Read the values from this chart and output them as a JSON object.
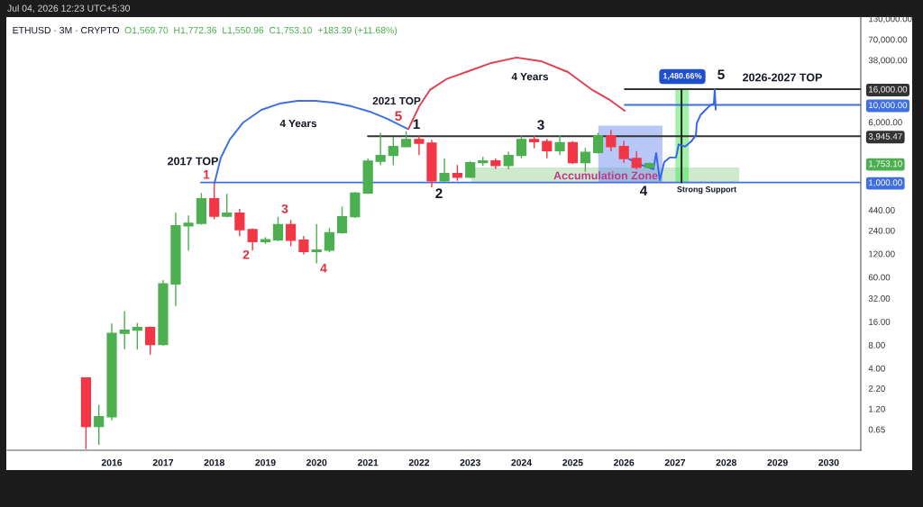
{
  "chart_data": {
    "type": "candlestick",
    "title": "ETHUSD · 3M · CRYPTO",
    "subtitle": "O1,569.70  H1,772.36  L1,550.96  C1,753.10  +183.39 (+11.68%)",
    "x": [
      "2015-07-01",
      "2015-10-01",
      "2016-01-01",
      "2016-04-01",
      "2016-07-01",
      "2016-10-01",
      "2017-01-01",
      "2017-04-01",
      "2017-07-01",
      "2017-10-01",
      "2018-01-01",
      "2018-04-01",
      "2018-07-01",
      "2018-10-01",
      "2019-01-01",
      "2019-04-01",
      "2019-07-01",
      "2019-10-01",
      "2020-01-01",
      "2020-04-01",
      "2020-07-01",
      "2020-10-01",
      "2021-01-01",
      "2021-04-01",
      "2021-07-01",
      "2021-10-01",
      "2022-01-01",
      "2022-04-01",
      "2022-07-01",
      "2022-10-01",
      "2023-01-01",
      "2023-04-01",
      "2023-07-01",
      "2023-10-01",
      "2024-01-01",
      "2024-04-01",
      "2024-07-01",
      "2024-10-01",
      "2025-01-01",
      "2025-04-01",
      "2025-07-01",
      "2025-10-01",
      "2026-01-01",
      "2026-04-01",
      "2026-07-01"
    ],
    "ohlc": [
      [
        3.0,
        3.0,
        0.37,
        0.71
      ],
      [
        0.71,
        1.33,
        0.42,
        0.95
      ],
      [
        0.95,
        14.8,
        0.87,
        11.3
      ],
      [
        11.3,
        21.5,
        7.2,
        12.4
      ],
      [
        12.4,
        15.1,
        7.1,
        13.4
      ],
      [
        13.4,
        13.6,
        6.1,
        8.1
      ],
      [
        8.1,
        54,
        8.0,
        49
      ],
      [
        49,
        400,
        26,
        276
      ],
      [
        276,
        367,
        135,
        297
      ],
      [
        297,
        718,
        290,
        616
      ],
      [
        616,
        980,
        342,
        367
      ],
      [
        367,
        700,
        361,
        402
      ],
      [
        402,
        447,
        206,
        246
      ],
      [
        246,
        250,
        135,
        172
      ],
      [
        172,
        193,
        164,
        182
      ],
      [
        182,
        351,
        178,
        286
      ],
      [
        286,
        321,
        153,
        180
      ],
      [
        180,
        200,
        120,
        128
      ],
      [
        128,
        286,
        92,
        134
      ],
      [
        134,
        253,
        128,
        225
      ],
      [
        225,
        480,
        222,
        361
      ],
      [
        361,
        740,
        355,
        730
      ],
      [
        730,
        2000,
        720,
        1880
      ],
      [
        1880,
        4280,
        1700,
        2230
      ],
      [
        2230,
        3800,
        1700,
        2910
      ],
      [
        2910,
        4500,
        2900,
        3580
      ],
      [
        3580,
        3900,
        2290,
        3210
      ],
      [
        3210,
        3480,
        880,
        1050
      ],
      [
        1050,
        2000,
        1020,
        1300
      ],
      [
        1300,
        1650,
        1070,
        1170
      ],
      [
        1170,
        1850,
        1170,
        1800
      ],
      [
        1800,
        2090,
        1680,
        1900
      ],
      [
        1900,
        2000,
        1530,
        1650
      ],
      [
        1650,
        2440,
        1510,
        2230
      ],
      [
        2230,
        3900,
        2090,
        3580
      ],
      [
        3580,
        4000,
        2810,
        3360
      ],
      [
        3360,
        3580,
        2090,
        2570
      ],
      [
        2570,
        4000,
        2290,
        3270
      ],
      [
        3270,
        3360,
        1760,
        1800
      ],
      [
        1800,
        2740,
        1400,
        2440
      ],
      [
        2440,
        4280,
        2400,
        4020
      ],
      [
        4020,
        4670,
        2570,
        2910
      ],
      [
        2910,
        3360,
        1830,
        2040
      ],
      [
        2040,
        2500,
        1510,
        1570
      ],
      [
        1569.7,
        1772.36,
        1550.96,
        1753.1
      ]
    ],
    "colors": [
      "#f23645",
      "#4caf50",
      "#4caf50",
      "#4caf50",
      "#4caf50",
      "#f23645",
      "#4caf50",
      "#4caf50",
      "#4caf50",
      "#4caf50",
      "#f23645",
      "#4caf50",
      "#f23645",
      "#f23645",
      "#4caf50",
      "#4caf50",
      "#f23645",
      "#f23645",
      "#4caf50",
      "#4caf50",
      "#4caf50",
      "#4caf50",
      "#4caf50",
      "#4caf50",
      "#4caf50",
      "#4caf50",
      "#f23645",
      "#f23645",
      "#4caf50",
      "#f23645",
      "#4caf50",
      "#4caf50",
      "#f23645",
      "#4caf50",
      "#4caf50",
      "#f23645",
      "#f23645",
      "#4caf50",
      "#f23645",
      "#4caf50",
      "#4caf50",
      "#f23645",
      "#f23645",
      "#f23645",
      "#4caf50"
    ],
    "series": [
      {
        "type": "line",
        "color": "#9fd49a",
        "x": [
          "2023-01-10",
          "2028-04-03"
        ],
        "values": [
          null,
          null
        ],
        "lower": [
          1000,
          1000
        ],
        "upper": [
          1560,
          1560
        ]
      },
      {
        "type": "line",
        "color": "#6f8ff0",
        "x": [
          "2025-07-03",
          "2026-10-03"
        ],
        "values": [
          null,
          null
        ],
        "lower": [
          1000,
          1000
        ],
        "upper": [
          5400,
          5400
        ]
      },
      {
        "type": "line",
        "color": "#3ee84f",
        "x": [
          "2027-01-04",
          "2027-04-08"
        ],
        "values": [
          null,
          null
        ],
        "lower": [
          1000,
          1000
        ],
        "upper": [
          16000,
          16000
        ]
      },
      {
        "type": "line",
        "color": "#3f6fe0",
        "x": [
          "2018-01-03",
          "2018-02-17",
          "2018-04-22",
          "2018-07-27",
          "2018-12-03",
          "2019-04-11",
          "2019-08-18",
          "2019-12-24",
          "2020-05-01",
          "2020-09-07",
          "2021-01-14",
          "2021-05-22",
          "2021-10-11"
        ],
        "values": [
          990,
          2090,
          3580,
          5950,
          8650,
          10400,
          11300,
          11300,
          10700,
          9600,
          8200,
          6600,
          4900
        ]
      },
      {
        "type": "line",
        "color": "#e2404f",
        "x": [
          "2021-10-17",
          "2022-01-02",
          "2022-03-19",
          "2022-07-14",
          "2022-12-02",
          "2023-05-31",
          "2023-11-27",
          "2024-05-19",
          "2024-11-28",
          "2025-05-21",
          "2025-09-13",
          "2026-01-07"
        ],
        "values": [
          4900,
          9600,
          15600,
          21500,
          26600,
          34800,
          40900,
          36700,
          26600,
          15600,
          11900,
          8400
        ]
      },
      {
        "type": "line",
        "color": "#3f6fe0",
        "x": [
          "2017-09-28",
          "2030-08-18"
        ],
        "values": [
          1000,
          1000
        ]
      },
      {
        "type": "line",
        "color": "#333333",
        "x": [
          "2021-01-01",
          "2030-08-18"
        ],
        "values": [
          3945.47,
          3945.47
        ]
      },
      {
        "type": "line",
        "color": "#3f6fe0",
        "x": [
          "2026-01-07",
          "2030-08-18"
        ],
        "values": [
          10000,
          10000
        ]
      },
      {
        "type": "line",
        "color": "#333333",
        "x": [
          "2026-01-07",
          "2030-08-18"
        ],
        "values": [
          16000,
          16000
        ]
      },
      {
        "type": "line",
        "color": "#222222",
        "x": [
          "2027-02-16",
          "2027-02-16"
        ],
        "values": [
          1000,
          16000
        ]
      },
      {
        "type": "line",
        "color": "#3366ee",
        "x": [
          "2026-02-08",
          "2026-04-07",
          "2026-06-10",
          "2026-07-31",
          "2026-08-19",
          "2026-09-14",
          "2026-10-16",
          "2026-11-24",
          "2027-01-08",
          "2027-01-27",
          "2027-03-13",
          "2027-04-28",
          "2027-05-30",
          "2027-06-05",
          "2027-07-01",
          "2027-08-08",
          "2027-09-09",
          "2027-10-05",
          "2027-10-11",
          "2027-10-18"
        ],
        "values": [
          2000,
          1750,
          1600,
          1480,
          2400,
          1070,
          1830,
          2100,
          2100,
          3100,
          2900,
          3400,
          4100,
          5800,
          7400,
          8700,
          9900,
          10400,
          16000,
          8700
        ]
      }
    ],
    "annotations": [
      "2017 TOP",
      "1",
      "4 Years",
      "2",
      "3",
      "4",
      "2021 TOP",
      "5",
      "1",
      "4 Years",
      "2",
      "3",
      "Accumulation Zone",
      "4",
      "Strong Support",
      "1,480.66%",
      "5",
      "2026-2027 TOP",
      "Jul 04, 2026 12:23 UTC+5:30"
    ],
    "log": true,
    "xlim": [
      "2013-12-16",
      "2030-08-18"
    ],
    "xticks": [
      "2016",
      "2017",
      "2018",
      "2019",
      "2020",
      "2021",
      "2022",
      "2023",
      "2024",
      "2025",
      "2026",
      "2027",
      "2028",
      "2029",
      "2030"
    ],
    "ylim": [
      0.35,
      136000
    ],
    "yticks": [
      0.65,
      {
        "value": 1.2,
        "label": "1.20"
      },
      {
        "value": 2.2,
        "label": "2.20"
      },
      {
        "value": 4,
        "label": "4.00"
      },
      {
        "value": 8,
        "label": "8.00"
      },
      {
        "value": 16,
        "label": "16.00"
      },
      {
        "value": 32,
        "label": "32.00"
      },
      {
        "value": 60,
        "label": "60.00"
      },
      {
        "value": 120,
        "label": "120.00"
      },
      {
        "value": 240,
        "label": "240.00"
      },
      {
        "value": 440,
        "label": "440.00"
      },
      {
        "value": 1000,
        "label": "1,000.00"
      },
      {
        "value": 1753.1,
        "label": "1,753.10"
      },
      {
        "value": 3945.47,
        "label": "3,945.47"
      },
      {
        "value": 6000,
        "label": "6,000.00"
      },
      {
        "value": 10000,
        "label": "10,000.00"
      },
      {
        "value": 16000,
        "label": "16,000.00"
      },
      {
        "value": 38000,
        "label": "38,000.00"
      },
      {
        "value": 70000,
        "label": "70,000.00"
      },
      {
        "value": 130000,
        "label": "130,000.00"
      }
    ]
  }
}
